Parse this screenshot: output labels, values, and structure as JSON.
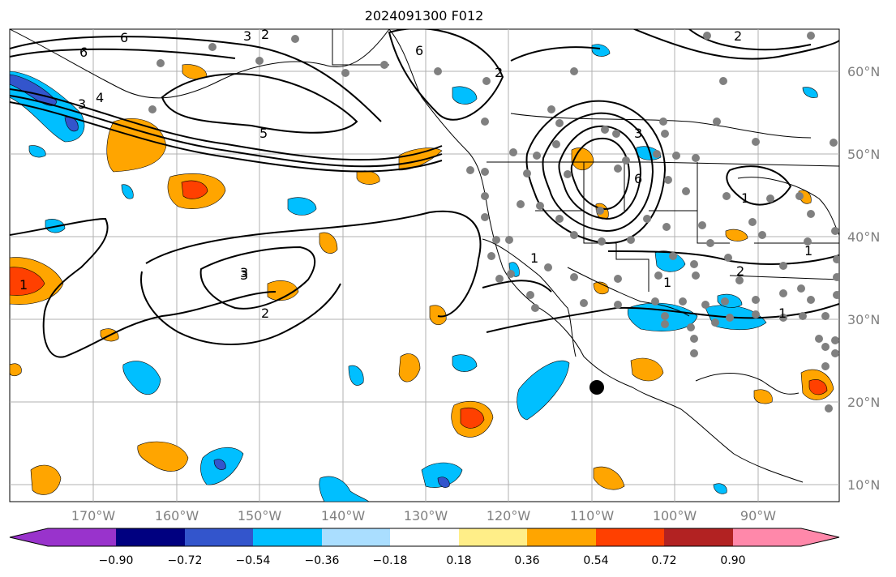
{
  "title": "2024091300 F012",
  "lat_labels": [
    "60°N",
    "50°N",
    "40°N",
    "30°N",
    "20°N",
    "10°N"
  ],
  "lon_labels": [
    "170°W",
    "160°W",
    "150°W",
    "140°W",
    "130°W",
    "120°W",
    "110°W",
    "100°W",
    "90°W"
  ],
  "colorbar": {
    "tick_labels": [
      "−0.90",
      "−0.72",
      "−0.54",
      "−0.36",
      "−0.18",
      "0.18",
      "0.36",
      "0.54",
      "0.72",
      "0.90"
    ],
    "colors": [
      "#9933cc",
      "#000080",
      "#3355cc",
      "#00bfff",
      "#aadeff",
      "#ffffff",
      "#ffee88",
      "#ffa500",
      "#ff4000",
      "#b22222",
      "#ff88aa"
    ]
  },
  "contour_labels": [
    "6",
    "3",
    "2",
    "6",
    "2",
    "6",
    "3",
    "4",
    "5",
    "3",
    "1",
    "3",
    "2",
    "1",
    "1",
    "3",
    "6",
    "2",
    "1",
    "1",
    "2",
    "1"
  ],
  "colors": {
    "grid": "#b0b0b0",
    "contour": "#000000",
    "station": "#808080",
    "marker": "#000000"
  }
}
